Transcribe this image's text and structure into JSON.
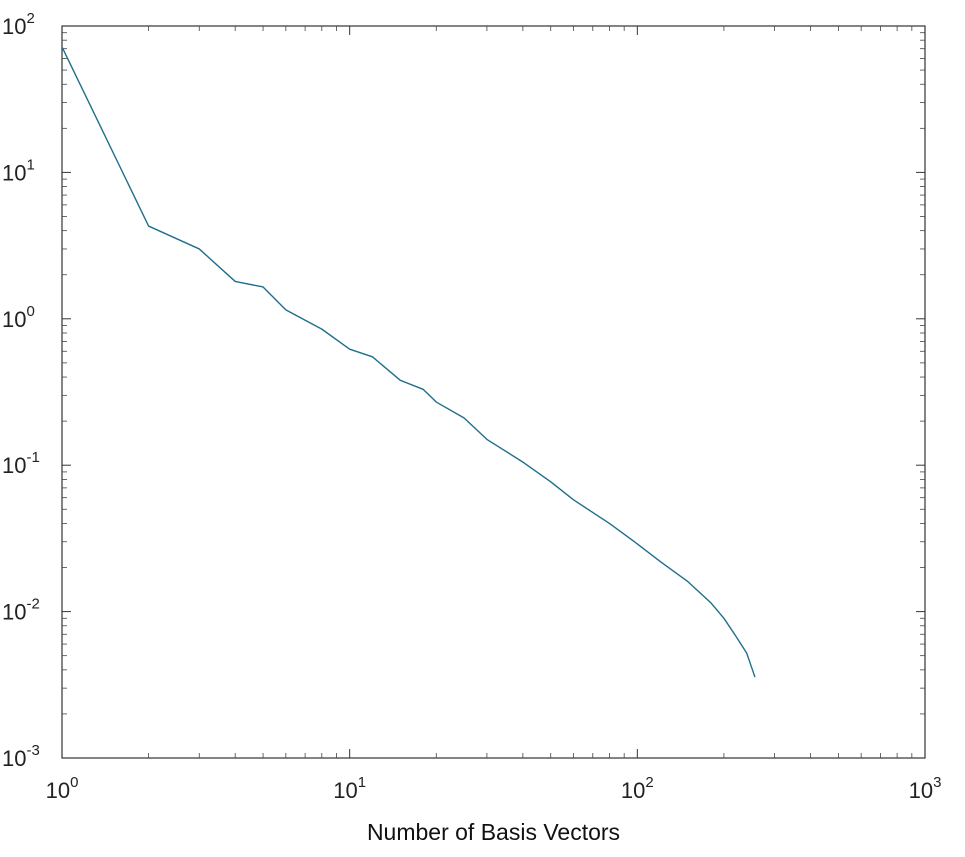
{
  "chart_data": {
    "type": "line",
    "title": "",
    "xlabel": "Number of Basis Vectors",
    "ylabel": "",
    "xscale": "log",
    "yscale": "log",
    "xlim": [
      1,
      1000
    ],
    "ylim": [
      0.001,
      100
    ],
    "grid": false,
    "legend": "none",
    "line_color": "#1f6f8b",
    "x_ticks": [
      {
        "base": "10",
        "exp": "0"
      },
      {
        "base": "10",
        "exp": "1"
      },
      {
        "base": "10",
        "exp": "2"
      },
      {
        "base": "10",
        "exp": "3"
      }
    ],
    "y_ticks": [
      {
        "base": "10",
        "exp": "-3"
      },
      {
        "base": "10",
        "exp": "-2"
      },
      {
        "base": "10",
        "exp": "-1"
      },
      {
        "base": "10",
        "exp": "0"
      },
      {
        "base": "10",
        "exp": "1"
      },
      {
        "base": "10",
        "exp": "2"
      }
    ],
    "x_tick_values": [
      1,
      10,
      100,
      1000
    ],
    "y_tick_values": [
      0.001,
      0.01,
      0.1,
      1,
      10,
      100
    ],
    "series": [
      {
        "x": [
          1,
          2,
          3,
          4,
          5,
          6,
          8,
          10,
          12,
          15,
          18,
          20,
          25,
          30,
          40,
          50,
          60,
          80,
          100,
          120,
          150,
          180,
          200,
          220,
          240,
          256
        ],
        "y": [
          72,
          4.3,
          3.0,
          1.8,
          1.65,
          1.15,
          0.85,
          0.62,
          0.55,
          0.38,
          0.33,
          0.27,
          0.21,
          0.15,
          0.105,
          0.077,
          0.058,
          0.04,
          0.029,
          0.022,
          0.016,
          0.0115,
          0.009,
          0.0068,
          0.0052,
          0.0036
        ]
      }
    ]
  }
}
